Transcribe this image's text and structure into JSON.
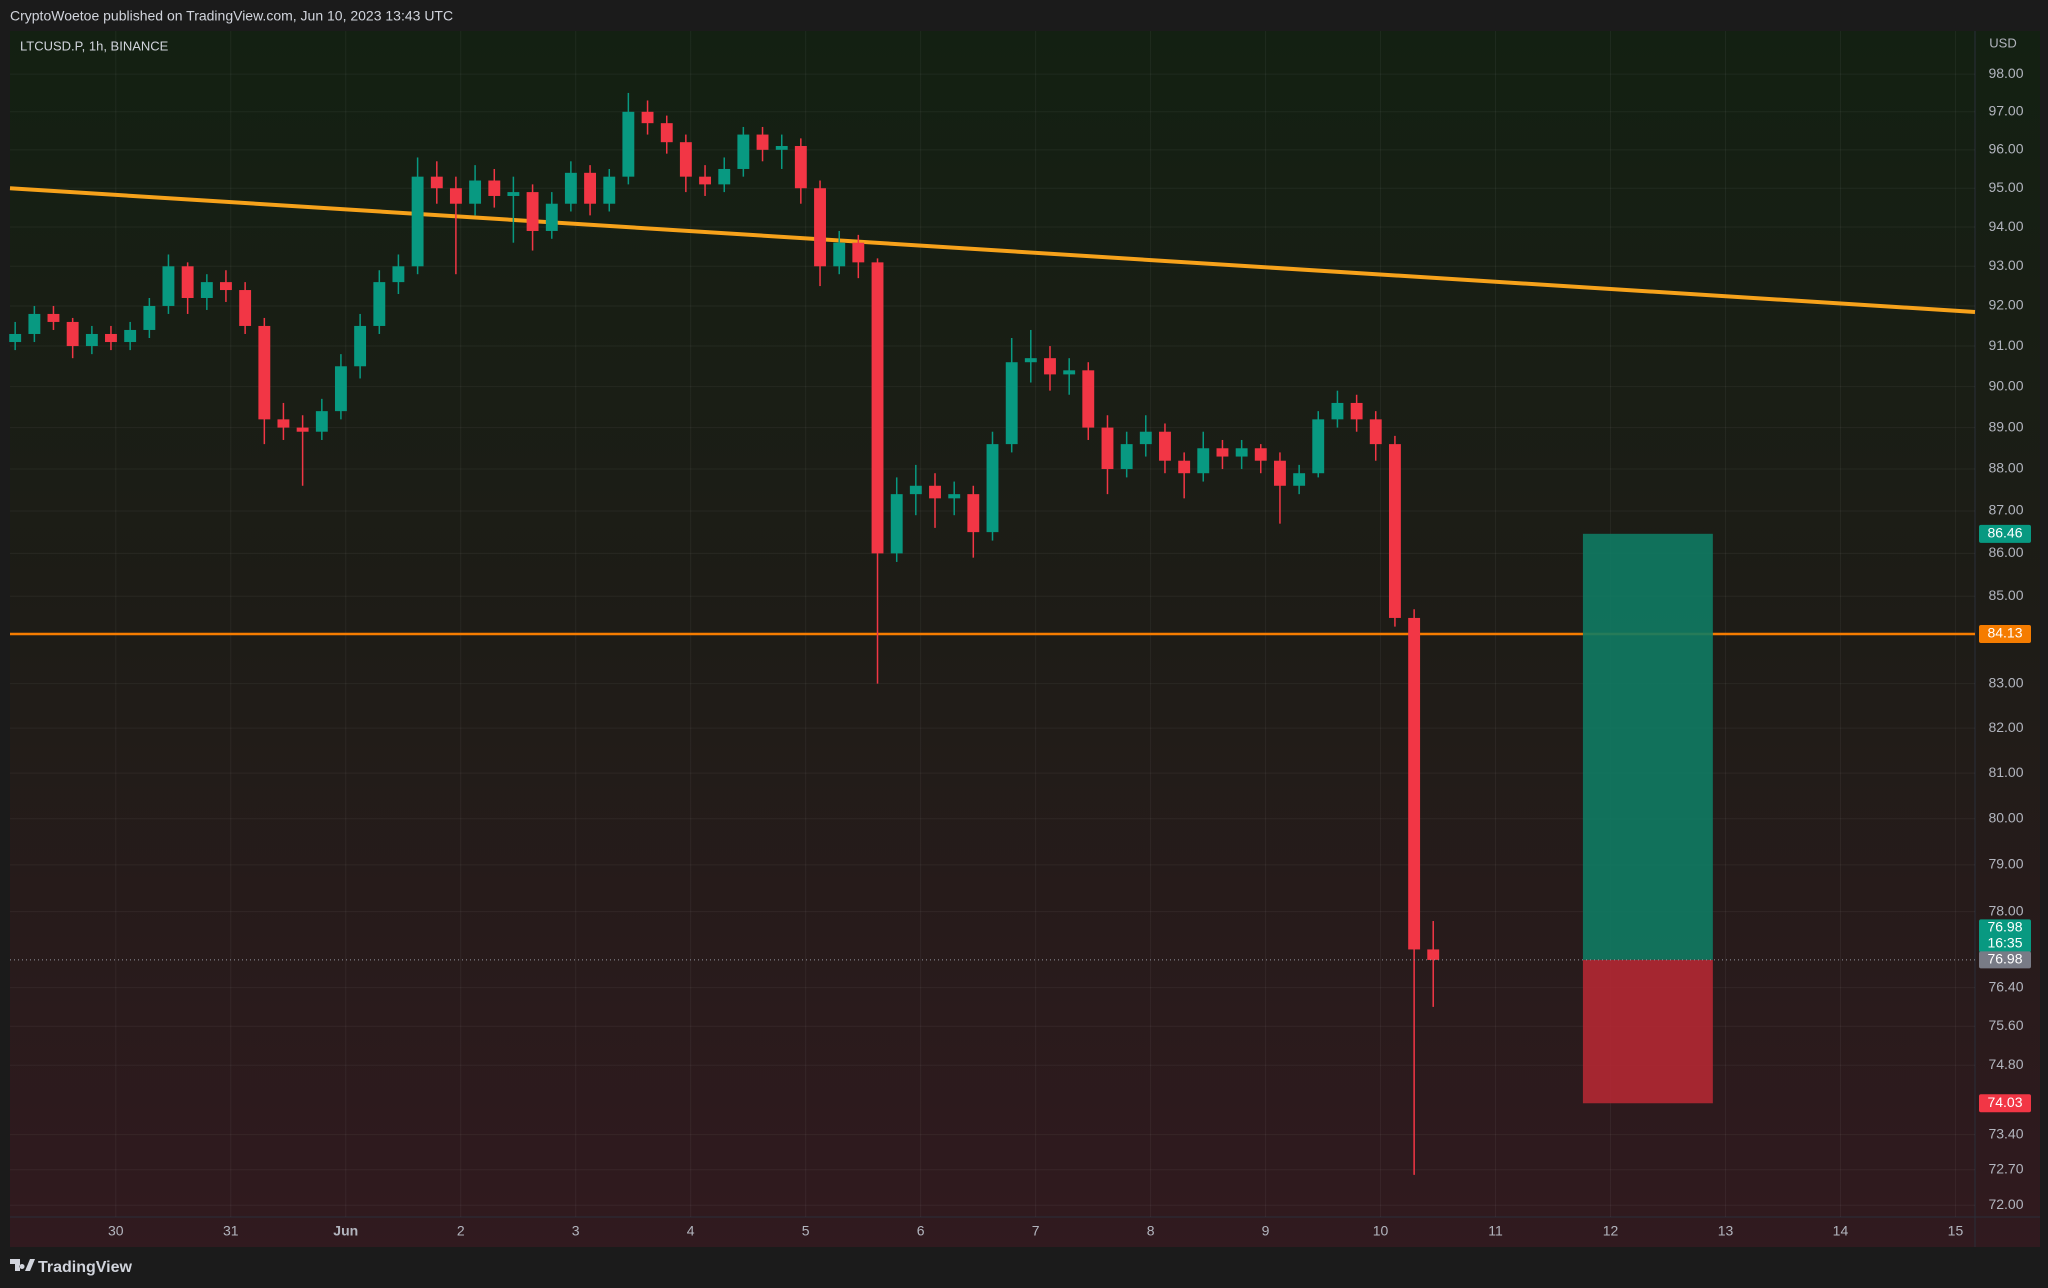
{
  "chart_data": {
    "type": "candlestick",
    "header": "CryptoWoetoe published on TradingView.com, Jun 10, 2023 13:43 UTC",
    "title": "LTCUSD.P, 1h, BINANCE",
    "y_unit_label": "USD",
    "footer": "TradingView",
    "log_scale": true,
    "grid": true,
    "up_color": "#089981",
    "down_color": "#f23645",
    "xlim": [
      -0.92,
      16.17
    ],
    "ylim": [
      71.77,
      99.16
    ],
    "xticks": [
      {
        "value": 0,
        "label": "30"
      },
      {
        "value": 1,
        "label": "31"
      },
      {
        "value": 2,
        "label": "Jun"
      },
      {
        "value": 3,
        "label": "2"
      },
      {
        "value": 4,
        "label": "3"
      },
      {
        "value": 5,
        "label": "4"
      },
      {
        "value": 6,
        "label": "5"
      },
      {
        "value": 7,
        "label": "6"
      },
      {
        "value": 8,
        "label": "7"
      },
      {
        "value": 9,
        "label": "8"
      },
      {
        "value": 10,
        "label": "9"
      },
      {
        "value": 11,
        "label": "10"
      },
      {
        "value": 12,
        "label": "11"
      },
      {
        "value": 13,
        "label": "12"
      },
      {
        "value": 14,
        "label": "13"
      },
      {
        "value": 15,
        "label": "14"
      },
      {
        "value": 16,
        "label": "15"
      }
    ],
    "yticks": [
      {
        "value": 98,
        "label": "98.00"
      },
      {
        "value": 97,
        "label": "97.00"
      },
      {
        "value": 96,
        "label": "96.00"
      },
      {
        "value": 95,
        "label": "95.00"
      },
      {
        "value": 94,
        "label": "94.00"
      },
      {
        "value": 93,
        "label": "93.00"
      },
      {
        "value": 92,
        "label": "92.00"
      },
      {
        "value": 91,
        "label": "91.00"
      },
      {
        "value": 90,
        "label": "90.00"
      },
      {
        "value": 89,
        "label": "89.00"
      },
      {
        "value": 88,
        "label": "88.00"
      },
      {
        "value": 87,
        "label": "87.00"
      },
      {
        "value": 86,
        "label": "86.00"
      },
      {
        "value": 85,
        "label": "85.00"
      },
      {
        "value": 83,
        "label": "83.00"
      },
      {
        "value": 82,
        "label": "82.00"
      },
      {
        "value": 81,
        "label": "81.00"
      },
      {
        "value": 80,
        "label": "80.00"
      },
      {
        "value": 79,
        "label": "79.00"
      },
      {
        "value": 78,
        "label": "78.00"
      },
      {
        "value": 76.4,
        "label": "76.40"
      },
      {
        "value": 75.6,
        "label": "75.60"
      },
      {
        "value": 74.8,
        "label": "74.80"
      },
      {
        "value": 73.4,
        "label": "73.40"
      },
      {
        "value": 72.7,
        "label": "72.70"
      },
      {
        "value": 72,
        "label": "72.00"
      }
    ],
    "x": [
      -0.875,
      -0.708,
      -0.542,
      -0.375,
      -0.208,
      -0.042,
      0.125,
      0.292,
      0.458,
      0.625,
      0.792,
      0.958,
      1.125,
      1.292,
      1.458,
      1.625,
      1.792,
      1.958,
      2.125,
      2.292,
      2.458,
      2.625,
      2.792,
      2.958,
      3.125,
      3.292,
      3.458,
      3.625,
      3.792,
      3.958,
      4.125,
      4.292,
      4.458,
      4.625,
      4.792,
      4.958,
      5.125,
      5.292,
      5.458,
      5.625,
      5.792,
      5.958,
      6.125,
      6.292,
      6.458,
      6.625,
      6.792,
      6.958,
      7.125,
      7.292,
      7.458,
      7.625,
      7.792,
      7.958,
      8.125,
      8.292,
      8.458,
      8.625,
      8.792,
      8.958,
      9.125,
      9.292,
      9.458,
      9.625,
      9.792,
      9.958,
      10.125,
      10.292,
      10.458,
      10.625,
      10.792,
      10.958,
      11.125,
      11.292,
      11.458
    ],
    "open": [
      91.1,
      91.3,
      91.8,
      91.6,
      91.0,
      91.3,
      91.1,
      91.4,
      92.0,
      93.0,
      92.2,
      92.6,
      92.4,
      91.5,
      89.2,
      89.0,
      88.9,
      89.4,
      90.5,
      91.5,
      92.6,
      93.0,
      95.3,
      95.0,
      94.6,
      95.2,
      94.8,
      94.9,
      93.9,
      94.6,
      95.4,
      94.6,
      95.3,
      97.0,
      96.7,
      96.2,
      95.3,
      95.1,
      95.5,
      96.4,
      96.0,
      96.1,
      95.0,
      93.0,
      93.6,
      93.1,
      86.0,
      87.4,
      87.6,
      87.3,
      87.4,
      86.5,
      88.6,
      90.6,
      90.7,
      90.3,
      90.4,
      89.0,
      88.0,
      88.6,
      88.9,
      88.2,
      87.9,
      88.5,
      88.3,
      88.5,
      88.2,
      87.6,
      87.9,
      89.2,
      89.6,
      89.2,
      88.6,
      84.5,
      77.2
    ],
    "high": [
      91.6,
      92.0,
      92.0,
      91.7,
      91.5,
      91.5,
      91.6,
      92.2,
      93.3,
      93.1,
      92.8,
      92.9,
      92.6,
      91.7,
      89.6,
      89.3,
      89.7,
      90.8,
      91.8,
      92.9,
      93.3,
      95.8,
      95.7,
      95.3,
      95.6,
      95.5,
      95.3,
      95.1,
      94.9,
      95.7,
      95.6,
      95.5,
      97.5,
      97.3,
      96.9,
      96.4,
      95.6,
      95.8,
      96.6,
      96.6,
      96.4,
      96.3,
      95.2,
      93.9,
      93.8,
      93.2,
      87.8,
      88.1,
      87.9,
      87.7,
      87.6,
      88.9,
      91.2,
      91.4,
      91.0,
      90.7,
      90.6,
      89.3,
      88.9,
      89.3,
      89.1,
      88.4,
      88.9,
      88.7,
      88.7,
      88.6,
      88.4,
      88.1,
      89.4,
      89.9,
      89.8,
      89.4,
      88.8,
      84.7,
      77.8
    ],
    "low": [
      90.9,
      91.1,
      91.4,
      90.7,
      90.8,
      90.9,
      90.9,
      91.2,
      91.8,
      91.8,
      91.9,
      92.1,
      91.3,
      88.6,
      88.7,
      87.6,
      88.7,
      89.2,
      90.2,
      91.3,
      92.3,
      92.8,
      94.6,
      92.8,
      94.3,
      94.5,
      93.6,
      93.4,
      93.7,
      94.4,
      94.3,
      94.4,
      95.1,
      96.4,
      95.9,
      94.9,
      94.8,
      94.9,
      95.3,
      95.7,
      95.5,
      94.6,
      92.5,
      92.8,
      92.7,
      83.0,
      85.8,
      86.9,
      86.6,
      86.9,
      85.9,
      86.3,
      88.4,
      90.1,
      89.9,
      89.8,
      88.7,
      87.4,
      87.8,
      88.3,
      87.9,
      87.3,
      87.7,
      88.0,
      88.0,
      87.9,
      86.7,
      87.4,
      87.8,
      89.0,
      88.9,
      88.2,
      84.3,
      72.6,
      76.0
    ],
    "close": [
      91.3,
      91.8,
      91.6,
      91.0,
      91.3,
      91.1,
      91.4,
      92.0,
      93.0,
      92.2,
      92.6,
      92.4,
      91.5,
      89.2,
      89.0,
      88.9,
      89.4,
      90.5,
      91.5,
      92.6,
      93.0,
      95.3,
      95.0,
      94.6,
      95.2,
      94.8,
      94.9,
      93.9,
      94.6,
      95.4,
      94.6,
      95.3,
      97.0,
      96.7,
      96.2,
      95.3,
      95.1,
      95.5,
      96.4,
      96.0,
      96.1,
      95.0,
      93.0,
      93.6,
      93.1,
      86.0,
      87.4,
      87.6,
      87.3,
      87.4,
      86.5,
      88.6,
      90.6,
      90.7,
      90.3,
      90.4,
      89.0,
      88.0,
      88.6,
      88.9,
      88.2,
      87.9,
      88.5,
      88.3,
      88.5,
      88.2,
      87.6,
      87.9,
      89.2,
      89.6,
      89.2,
      88.6,
      84.5,
      77.2,
      76.98
    ],
    "trendline": {
      "x": [
        -0.92,
        16.17
      ],
      "y": [
        95.0,
        91.85
      ],
      "color": "#f7a21b"
    },
    "level": {
      "value": 84.13,
      "color": "#f57c00"
    },
    "position": {
      "x": [
        12.76,
        13.89
      ],
      "entry": 76.98,
      "target": 86.46,
      "stop": 74.03,
      "profit_color": "#0f7b63",
      "loss_color": "#b22833"
    },
    "last_price": 76.98,
    "countdown": "16:35"
  }
}
